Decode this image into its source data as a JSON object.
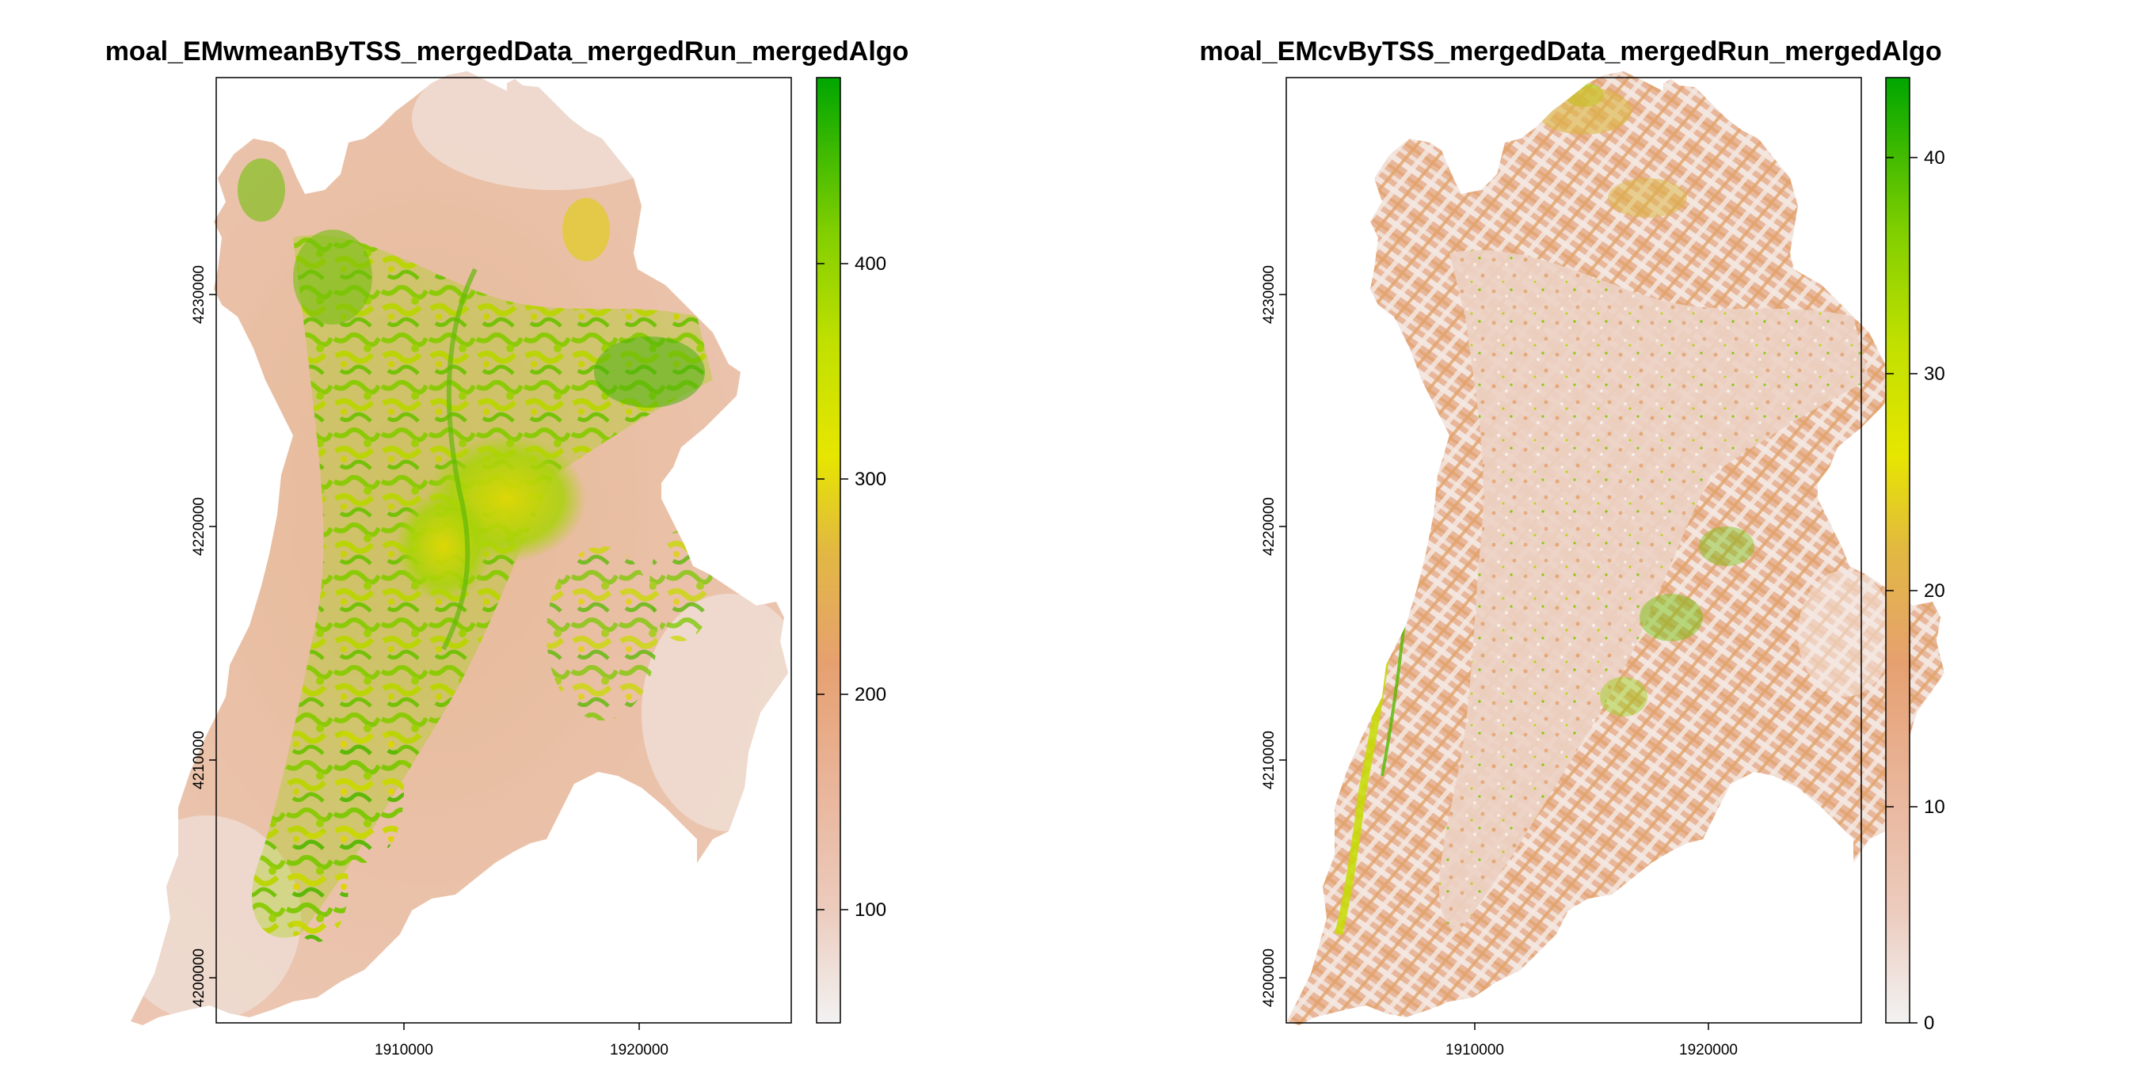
{
  "maps": [
    {
      "id": "wmean",
      "title": "moal_EMwmeanByTSS_mergedData_mergedRun_mergedAlgo",
      "x_ticks": [
        "1910000",
        "1920000"
      ],
      "y_ticks": [
        "4200000",
        "4210000",
        "4220000",
        "4230000"
      ],
      "legend": {
        "ticks": [
          "100",
          "200",
          "300",
          "400"
        ],
        "colors": [
          "#f2f2f2",
          "#eccbbd",
          "#e9b59a",
          "#e6a070",
          "#e2b842",
          "#e6e600",
          "#c0e000",
          "#8fd400",
          "#55c200",
          "#00a600"
        ]
      }
    },
    {
      "id": "cv",
      "title": "moal_EMcvByTSS_mergedData_mergedRun_mergedAlgo",
      "x_ticks": [
        "1910000",
        "1920000"
      ],
      "y_ticks": [
        "4200000",
        "4210000",
        "4220000",
        "4230000"
      ],
      "legend": {
        "ticks": [
          "0",
          "10",
          "20",
          "30",
          "40"
        ],
        "colors": [
          "#f2f2f2",
          "#eccbbd",
          "#e9b59a",
          "#e6a070",
          "#e2b842",
          "#e6e600",
          "#c0e000",
          "#8fd400",
          "#55c200",
          "#00a600"
        ]
      }
    }
  ]
}
